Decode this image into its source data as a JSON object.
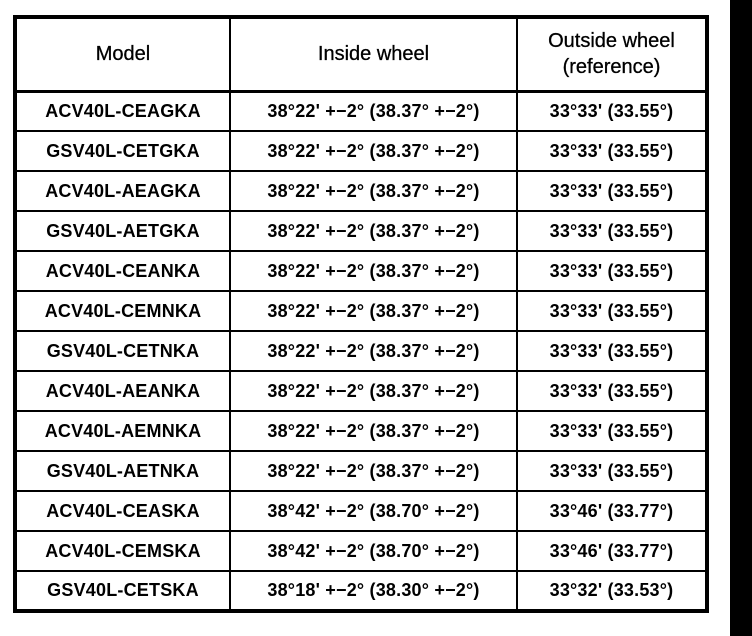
{
  "page": {
    "scan_bar_color": "#000000",
    "background_color": "#ffffff",
    "text_color": "#000000"
  },
  "table": {
    "headers": [
      "Model",
      "Inside wheel",
      "Outside wheel (reference)"
    ],
    "rows": [
      {
        "model": "ACV40L-CEAGKA",
        "inside_wheel": "38°22' +−2° (38.37° +−2°)",
        "outside_wheel": "33°33' (33.55°)"
      },
      {
        "model": "GSV40L-CETGKA",
        "inside_wheel": "38°22' +−2° (38.37° +−2°)",
        "outside_wheel": "33°33' (33.55°)"
      },
      {
        "model": "ACV40L-AEAGKA",
        "inside_wheel": "38°22' +−2° (38.37° +−2°)",
        "outside_wheel": "33°33' (33.55°)"
      },
      {
        "model": "GSV40L-AETGKA",
        "inside_wheel": "38°22' +−2° (38.37° +−2°)",
        "outside_wheel": "33°33' (33.55°)"
      },
      {
        "model": "ACV40L-CEANKA",
        "inside_wheel": "38°22' +−2° (38.37° +−2°)",
        "outside_wheel": "33°33' (33.55°)"
      },
      {
        "model": "ACV40L-CEMNKA",
        "inside_wheel": "38°22' +−2° (38.37° +−2°)",
        "outside_wheel": "33°33' (33.55°)"
      },
      {
        "model": "GSV40L-CETNKA",
        "inside_wheel": "38°22' +−2° (38.37° +−2°)",
        "outside_wheel": "33°33' (33.55°)"
      },
      {
        "model": "ACV40L-AEANKA",
        "inside_wheel": "38°22' +−2° (38.37° +−2°)",
        "outside_wheel": "33°33' (33.55°)"
      },
      {
        "model": "ACV40L-AEMNKA",
        "inside_wheel": "38°22' +−2° (38.37° +−2°)",
        "outside_wheel": "33°33' (33.55°)"
      },
      {
        "model": "GSV40L-AETNKA",
        "inside_wheel": "38°22' +−2° (38.37° +−2°)",
        "outside_wheel": "33°33' (33.55°)"
      },
      {
        "model": "ACV40L-CEASKA",
        "inside_wheel": "38°42' +−2° (38.70° +−2°)",
        "outside_wheel": "33°46' (33.77°)"
      },
      {
        "model": "ACV40L-CEMSKA",
        "inside_wheel": "38°42' +−2° (38.70° +−2°)",
        "outside_wheel": "33°46' (33.77°)"
      },
      {
        "model": "GSV40L-CETSKA",
        "inside_wheel": "38°18' +−2° (38.30° +−2°)",
        "outside_wheel": "33°32' (33.53°)"
      }
    ]
  }
}
